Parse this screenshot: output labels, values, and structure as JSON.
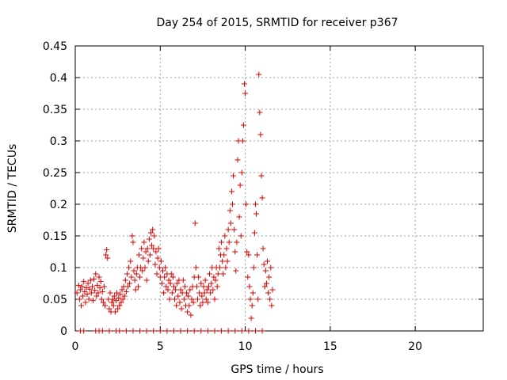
{
  "chart_data": {
    "type": "scatter",
    "title": "Day 254 of 2015, SRMTID for receiver p367",
    "xlabel": "GPS time / hours",
    "ylabel": "SRMTID / TECUs",
    "xlim": [
      0,
      24
    ],
    "ylim": [
      0,
      0.45
    ],
    "xticks": [
      0,
      5,
      10,
      15,
      20
    ],
    "xtick_labels": [
      "0",
      "5",
      "10",
      "15",
      "20"
    ],
    "yticks": [
      0,
      0.05,
      0.1,
      0.15,
      0.2,
      0.25,
      0.3,
      0.35,
      0.4,
      0.45
    ],
    "ytick_labels": [
      "0",
      "0.05",
      "0.1",
      "0.15",
      "0.2",
      "0.25",
      "0.3",
      "0.35",
      "0.4",
      "0.45"
    ],
    "grid": true,
    "marker": "+",
    "color": "#e00000",
    "series": [
      {
        "name": "SRMTID",
        "points": [
          [
            0.1,
            0.06
          ],
          [
            0.2,
            0.072
          ],
          [
            0.25,
            0.05
          ],
          [
            0.3,
            0.065
          ],
          [
            0.35,
            0.04
          ],
          [
            0.4,
            0.07
          ],
          [
            0.45,
            0.055
          ],
          [
            0.5,
            0.078
          ],
          [
            0.55,
            0.062
          ],
          [
            0.6,
            0.045
          ],
          [
            0.65,
            0.068
          ],
          [
            0.7,
            0.058
          ],
          [
            0.75,
            0.075
          ],
          [
            0.8,
            0.05
          ],
          [
            0.85,
            0.066
          ],
          [
            0.9,
            0.08
          ],
          [
            0.95,
            0.06
          ],
          [
            1.0,
            0.07
          ],
          [
            1.05,
            0.048
          ],
          [
            1.1,
            0.082
          ],
          [
            1.15,
            0.064
          ],
          [
            1.2,
            0.09
          ],
          [
            1.25,
            0.055
          ],
          [
            1.3,
            0.072
          ],
          [
            1.35,
            0.06
          ],
          [
            1.4,
            0.085
          ],
          [
            1.45,
            0.068
          ],
          [
            1.5,
            0.078
          ],
          [
            1.55,
            0.05
          ],
          [
            1.6,
            0.062
          ],
          [
            1.65,
            0.045
          ],
          [
            1.7,
            0.07
          ],
          [
            1.75,
            0.04
          ],
          [
            1.8,
            0.12
          ],
          [
            1.85,
            0.128
          ],
          [
            1.9,
            0.115
          ],
          [
            1.95,
            0.05
          ],
          [
            2.0,
            0.035
          ],
          [
            2.05,
            0.06
          ],
          [
            2.1,
            0.03
          ],
          [
            2.15,
            0.045
          ],
          [
            2.2,
            0.05
          ],
          [
            2.25,
            0.04
          ],
          [
            2.3,
            0.055
          ],
          [
            2.35,
            0.03
          ],
          [
            2.4,
            0.048
          ],
          [
            2.45,
            0.06
          ],
          [
            2.5,
            0.035
          ],
          [
            2.55,
            0.052
          ],
          [
            2.6,
            0.04
          ],
          [
            2.65,
            0.058
          ],
          [
            2.7,
            0.045
          ],
          [
            2.75,
            0.065
          ],
          [
            2.8,
            0.05
          ],
          [
            2.85,
            0.07
          ],
          [
            2.9,
            0.055
          ],
          [
            2.95,
            0.08
          ],
          [
            3.0,
            0.062
          ],
          [
            3.05,
            0.09
          ],
          [
            3.1,
            0.07
          ],
          [
            3.15,
            0.1
          ],
          [
            3.2,
            0.075
          ],
          [
            3.25,
            0.11
          ],
          [
            3.3,
            0.085
          ],
          [
            3.35,
            0.15
          ],
          [
            3.4,
            0.14
          ],
          [
            3.45,
            0.095
          ],
          [
            3.5,
            0.08
          ],
          [
            3.55,
            0.065
          ],
          [
            3.6,
            0.09
          ],
          [
            3.65,
            0.1
          ],
          [
            3.7,
            0.07
          ],
          [
            3.75,
            0.12
          ],
          [
            3.8,
            0.085
          ],
          [
            3.85,
            0.1
          ],
          [
            3.9,
            0.13
          ],
          [
            3.95,
            0.095
          ],
          [
            4.0,
            0.115
          ],
          [
            4.05,
            0.14
          ],
          [
            4.1,
            0.1
          ],
          [
            4.15,
            0.125
          ],
          [
            4.2,
            0.08
          ],
          [
            4.25,
            0.13
          ],
          [
            4.3,
            0.11
          ],
          [
            4.35,
            0.145
          ],
          [
            4.4,
            0.12
          ],
          [
            4.45,
            0.155
          ],
          [
            4.5,
            0.135
          ],
          [
            4.55,
            0.16
          ],
          [
            4.6,
            0.13
          ],
          [
            4.65,
            0.15
          ],
          [
            4.7,
            0.105
          ],
          [
            4.75,
            0.125
          ],
          [
            4.8,
            0.09
          ],
          [
            4.85,
            0.115
          ],
          [
            4.9,
            0.13
          ],
          [
            4.95,
            0.1
          ],
          [
            5.0,
            0.085
          ],
          [
            5.05,
            0.11
          ],
          [
            5.1,
            0.075
          ],
          [
            5.15,
            0.095
          ],
          [
            5.2,
            0.06
          ],
          [
            5.25,
            0.085
          ],
          [
            5.3,
            0.1
          ],
          [
            5.35,
            0.07
          ],
          [
            5.4,
            0.09
          ],
          [
            5.45,
            0.065
          ],
          [
            5.5,
            0.08
          ],
          [
            5.55,
            0.05
          ],
          [
            5.6,
            0.075
          ],
          [
            5.65,
            0.09
          ],
          [
            5.7,
            0.06
          ],
          [
            5.75,
            0.085
          ],
          [
            5.8,
            0.07
          ],
          [
            5.85,
            0.05
          ],
          [
            5.9,
            0.065
          ],
          [
            5.95,
            0.04
          ],
          [
            6.0,
            0.075
          ],
          [
            6.05,
            0.055
          ],
          [
            6.1,
            0.08
          ],
          [
            6.15,
            0.045
          ],
          [
            6.2,
            0.065
          ],
          [
            6.25,
            0.035
          ],
          [
            6.3,
            0.06
          ],
          [
            6.35,
            0.08
          ],
          [
            6.4,
            0.05
          ],
          [
            6.45,
            0.07
          ],
          [
            6.5,
            0.04
          ],
          [
            6.55,
            0.06
          ],
          [
            6.6,
            0.03
          ],
          [
            6.65,
            0.055
          ],
          [
            6.7,
            0.04
          ],
          [
            6.75,
            0.065
          ],
          [
            6.8,
            0.025
          ],
          [
            6.85,
            0.05
          ],
          [
            6.9,
            0.07
          ],
          [
            6.95,
            0.045
          ],
          [
            7.0,
            0.085
          ],
          [
            7.05,
            0.17
          ],
          [
            7.1,
            0.1
          ],
          [
            7.15,
            0.07
          ],
          [
            7.2,
            0.05
          ],
          [
            7.25,
            0.085
          ],
          [
            7.3,
            0.06
          ],
          [
            7.35,
            0.04
          ],
          [
            7.4,
            0.075
          ],
          [
            7.45,
            0.055
          ],
          [
            7.5,
            0.045
          ],
          [
            7.55,
            0.07
          ],
          [
            7.6,
            0.06
          ],
          [
            7.65,
            0.08
          ],
          [
            7.7,
            0.05
          ],
          [
            7.75,
            0.065
          ],
          [
            7.8,
            0.045
          ],
          [
            7.85,
            0.07
          ],
          [
            7.9,
            0.09
          ],
          [
            7.95,
            0.06
          ],
          [
            8.0,
            0.075
          ],
          [
            8.05,
            0.1
          ],
          [
            8.1,
            0.065
          ],
          [
            8.15,
            0.085
          ],
          [
            8.2,
            0.05
          ],
          [
            8.25,
            0.08
          ],
          [
            8.3,
            0.1
          ],
          [
            8.35,
            0.07
          ],
          [
            8.4,
            0.09
          ],
          [
            8.45,
            0.13
          ],
          [
            8.5,
            0.1
          ],
          [
            8.55,
            0.12
          ],
          [
            8.6,
            0.14
          ],
          [
            8.65,
            0.11
          ],
          [
            8.7,
            0.09
          ],
          [
            8.75,
            0.12
          ],
          [
            8.8,
            0.15
          ],
          [
            8.85,
            0.1
          ],
          [
            8.9,
            0.13
          ],
          [
            8.95,
            0.11
          ],
          [
            9.0,
            0.16
          ],
          [
            9.05,
            0.14
          ],
          [
            9.1,
            0.19
          ],
          [
            9.15,
            0.17
          ],
          [
            9.2,
            0.22
          ],
          [
            9.25,
            0.2
          ],
          [
            9.3,
            0.245
          ],
          [
            9.35,
            0.16
          ],
          [
            9.4,
            0.125
          ],
          [
            9.45,
            0.095
          ],
          [
            9.5,
            0.14
          ],
          [
            9.55,
            0.27
          ],
          [
            9.6,
            0.3
          ],
          [
            9.65,
            0.18
          ],
          [
            9.7,
            0.23
          ],
          [
            9.75,
            0.15
          ],
          [
            9.8,
            0.25
          ],
          [
            9.85,
            0.3
          ],
          [
            9.9,
            0.325
          ],
          [
            9.95,
            0.39
          ],
          [
            10.0,
            0.375
          ],
          [
            10.05,
            0.2
          ],
          [
            10.1,
            0.125
          ],
          [
            10.15,
            0.085
          ],
          [
            10.2,
            0.12
          ],
          [
            10.25,
            0.07
          ],
          [
            10.3,
            0.05
          ],
          [
            10.35,
            0.02
          ],
          [
            10.4,
            0.04
          ],
          [
            10.45,
            0.06
          ],
          [
            10.5,
            0.1
          ],
          [
            10.55,
            0.155
          ],
          [
            10.6,
            0.2
          ],
          [
            10.65,
            0.185
          ],
          [
            10.7,
            0.12
          ],
          [
            10.75,
            0.05
          ],
          [
            10.8,
            0.405
          ],
          [
            10.85,
            0.345
          ],
          [
            10.9,
            0.31
          ],
          [
            10.95,
            0.245
          ],
          [
            11.0,
            0.21
          ],
          [
            11.05,
            0.13
          ],
          [
            11.1,
            0.105
          ],
          [
            11.15,
            0.07
          ],
          [
            11.2,
            0.095
          ],
          [
            11.25,
            0.075
          ],
          [
            11.3,
            0.11
          ],
          [
            11.35,
            0.06
          ],
          [
            11.4,
            0.085
          ],
          [
            11.45,
            0.05
          ],
          [
            11.5,
            0.1
          ],
          [
            11.55,
            0.04
          ],
          [
            11.6,
            0.065
          ],
          [
            0.3,
            0.0
          ],
          [
            0.5,
            0.0
          ],
          [
            1.2,
            0.0
          ],
          [
            1.4,
            0.0
          ],
          [
            1.6,
            0.0
          ],
          [
            2.0,
            0.0
          ],
          [
            2.4,
            0.0
          ],
          [
            2.6,
            0.0
          ],
          [
            3.0,
            0.0
          ],
          [
            3.4,
            0.0
          ],
          [
            3.8,
            0.0
          ],
          [
            4.2,
            0.0
          ],
          [
            4.6,
            0.0
          ],
          [
            5.0,
            0.0
          ],
          [
            5.4,
            0.0
          ],
          [
            5.8,
            0.0
          ],
          [
            6.2,
            0.0
          ],
          [
            6.6,
            0.0
          ],
          [
            7.0,
            0.0
          ],
          [
            7.4,
            0.0
          ],
          [
            7.8,
            0.0
          ],
          [
            8.2,
            0.0
          ],
          [
            8.6,
            0.0
          ],
          [
            9.0,
            0.0
          ],
          [
            9.4,
            0.0
          ],
          [
            9.8,
            0.0
          ],
          [
            10.2,
            0.0
          ],
          [
            10.6,
            0.0
          ],
          [
            11.0,
            0.0
          ]
        ]
      }
    ]
  }
}
